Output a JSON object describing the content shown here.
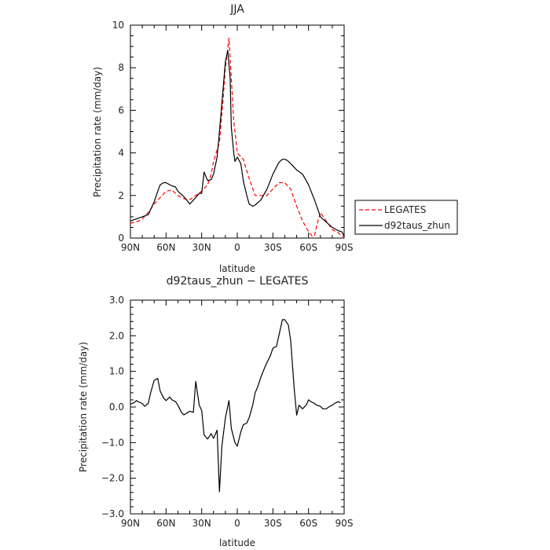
{
  "chart_data": [
    {
      "type": "line",
      "title": "JJA",
      "xlabel": "latitude",
      "ylabel": "Precipitation rate (mm/day)",
      "xlim": [
        90,
        -90
      ],
      "ylim": [
        0,
        10
      ],
      "xticks": [
        90,
        60,
        30,
        0,
        -30,
        -60,
        -90
      ],
      "xticklabels": [
        "90N",
        "60N",
        "30N",
        "0",
        "30S",
        "60S",
        "90S"
      ],
      "yticks": [
        0,
        2,
        4,
        6,
        8,
        10
      ],
      "yticklabels": [
        "0",
        "2",
        "4",
        "6",
        "8",
        "10"
      ],
      "legend_position": "right",
      "series": [
        {
          "name": "LEGATES",
          "color": "#ff0000",
          "style": "dashed",
          "x": [
            90,
            85,
            80,
            75,
            70,
            65,
            60,
            55,
            50,
            45,
            40,
            35,
            30,
            25,
            22,
            20,
            15,
            12,
            10,
            7,
            5,
            3,
            0,
            -5,
            -10,
            -15,
            -20,
            -25,
            -30,
            -35,
            -40,
            -45,
            -50,
            -55,
            -60,
            -63,
            -65,
            -67,
            -70,
            -75,
            -80,
            -85,
            -88,
            -90
          ],
          "y": [
            0.7,
            0.75,
            0.9,
            1.2,
            1.6,
            1.9,
            2.2,
            2.25,
            2.0,
            1.85,
            1.8,
            2.0,
            2.2,
            2.5,
            3.0,
            3.6,
            4.5,
            6.5,
            8.0,
            9.4,
            7.5,
            5.5,
            4.0,
            3.7,
            2.8,
            2.0,
            2.0,
            2.0,
            2.3,
            2.6,
            2.6,
            2.3,
            1.5,
            0.8,
            0.3,
            0.1,
            0.1,
            0.6,
            1.2,
            0.8,
            0.4,
            0.25,
            0.1,
            0.05
          ]
        },
        {
          "name": "d92taus_zhun",
          "color": "#000000",
          "style": "solid",
          "x": [
            90,
            85,
            80,
            75,
            70,
            67,
            65,
            62,
            60,
            55,
            52,
            50,
            45,
            40,
            35,
            32,
            30,
            28,
            25,
            22,
            20,
            17,
            15,
            12,
            10,
            8,
            6,
            5,
            3,
            2,
            0,
            -3,
            -5,
            -8,
            -10,
            -13,
            -15,
            -20,
            -25,
            -30,
            -35,
            -38,
            -40,
            -42,
            -45,
            -50,
            -55,
            -60,
            -65,
            -70,
            -75,
            -80,
            -85,
            -88,
            -90
          ],
          "y": [
            0.8,
            0.9,
            1.0,
            1.1,
            1.7,
            2.2,
            2.5,
            2.6,
            2.6,
            2.45,
            2.4,
            2.2,
            1.95,
            1.6,
            1.9,
            2.1,
            2.1,
            3.1,
            2.7,
            2.75,
            3.0,
            3.8,
            5.0,
            7.0,
            8.3,
            8.8,
            7.5,
            5.2,
            4.0,
            3.6,
            3.8,
            3.5,
            2.7,
            2.0,
            1.6,
            1.5,
            1.55,
            1.8,
            2.3,
            3.0,
            3.55,
            3.7,
            3.7,
            3.65,
            3.5,
            3.2,
            3.0,
            2.5,
            1.8,
            1.0,
            0.75,
            0.5,
            0.35,
            0.3,
            0.1
          ]
        }
      ]
    },
    {
      "type": "line",
      "title": "d92taus_zhun − LEGATES",
      "xlabel": "latitude",
      "ylabel": "Precipitation rate (mm/day)",
      "xlim": [
        90,
        -90
      ],
      "ylim": [
        -3,
        3
      ],
      "xticks": [
        90,
        60,
        30,
        0,
        -30,
        -60,
        -90
      ],
      "xticklabels": [
        "90N",
        "60N",
        "30N",
        "0",
        "30S",
        "60S",
        "90S"
      ],
      "yticks": [
        -3,
        -2,
        -1,
        0,
        1,
        2,
        3
      ],
      "yticklabels": [
        "−3.0",
        "−2.0",
        "−1.0",
        "0.0",
        "1.0",
        "2.0",
        "3.0"
      ],
      "series": [
        {
          "color": "#000000",
          "style": "solid",
          "x": [
            90,
            87,
            85,
            83,
            80,
            78,
            75,
            73,
            70,
            67,
            65,
            62,
            60,
            57,
            55,
            52,
            50,
            47,
            45,
            42,
            40,
            37,
            35,
            32,
            30,
            28,
            27,
            25,
            22,
            20,
            17,
            15,
            13,
            10,
            7,
            5,
            2,
            0,
            -3,
            -5,
            -8,
            -10,
            -13,
            -15,
            -17,
            -20,
            -23,
            -25,
            -28,
            -30,
            -33,
            -35,
            -38,
            -40,
            -43,
            -45,
            -48,
            -50,
            -52,
            -55,
            -58,
            -60,
            -62,
            -65,
            -67,
            -70,
            -72,
            -75,
            -77,
            -80,
            -82,
            -85,
            -87
          ],
          "y": [
            0.08,
            0.12,
            0.18,
            0.14,
            0.1,
            0.02,
            0.1,
            0.4,
            0.75,
            0.8,
            0.45,
            0.25,
            0.18,
            0.28,
            0.2,
            0.15,
            0.05,
            -0.15,
            -0.22,
            -0.16,
            -0.12,
            -0.15,
            0.72,
            0.05,
            -0.1,
            -0.78,
            -0.82,
            -0.9,
            -0.75,
            -0.88,
            -0.65,
            -2.38,
            -1.1,
            -0.3,
            0.18,
            -0.6,
            -1.0,
            -1.1,
            -0.7,
            -0.5,
            -0.45,
            -0.3,
            0.05,
            0.4,
            0.55,
            0.85,
            1.1,
            1.25,
            1.45,
            1.65,
            1.7,
            2.0,
            2.45,
            2.45,
            2.3,
            1.85,
            0.5,
            -0.23,
            0.05,
            -0.05,
            0.05,
            0.2,
            0.15,
            0.1,
            0.05,
            0.02,
            -0.05,
            -0.05,
            0.0,
            0.05,
            0.1,
            0.15,
            0.12
          ]
        }
      ]
    }
  ]
}
